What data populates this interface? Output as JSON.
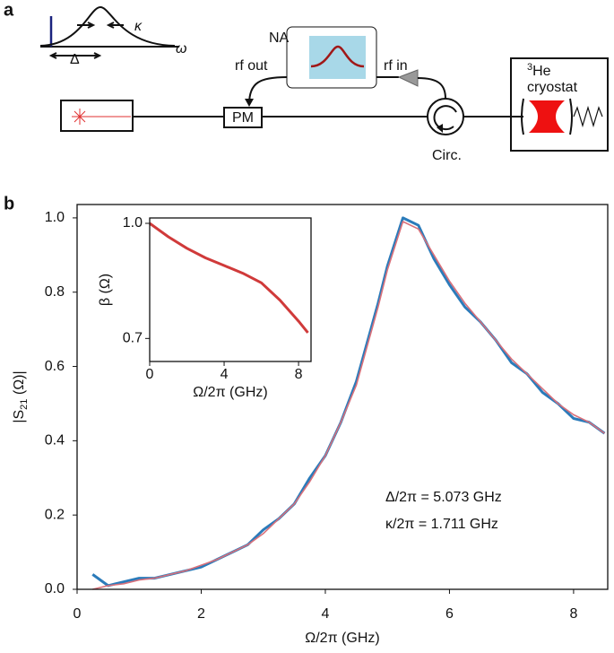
{
  "diagram": {
    "panel": "a",
    "na": "NA",
    "rf_out": "rf out",
    "rf_in": "rf in",
    "pm": "PM",
    "circ": "Circ.",
    "cryostat": [
      "3",
      "He",
      "cryostat"
    ],
    "kappa": "κ",
    "delta": "Δ",
    "omega": "ω"
  },
  "chart_data": [
    {
      "type": "line",
      "panel": "b",
      "xlabel": "Ω/2π (GHz)",
      "ylabel": [
        "|S",
        "21",
        " (Ω)|"
      ],
      "xlim": [
        0,
        8.55
      ],
      "xticks": [
        0,
        2,
        4,
        6,
        8
      ],
      "ylim": [
        0,
        1.036
      ],
      "yticks": [
        {
          "value": 0,
          "label": "0.0"
        },
        {
          "value": 0.2,
          "label": "0.2"
        },
        {
          "value": 0.4,
          "label": "0.4"
        },
        {
          "value": 0.6,
          "label": "0.6"
        },
        {
          "value": 0.8,
          "label": "0.8"
        },
        {
          "value": 1,
          "label": "1.0"
        }
      ],
      "x": [
        0.25,
        0.5,
        0.75,
        1,
        1.25,
        1.5,
        1.75,
        2,
        2.25,
        2.5,
        2.75,
        3,
        3.25,
        3.5,
        3.75,
        4,
        4.25,
        4.5,
        4.75,
        4.85,
        5,
        5.25,
        5.5,
        5.75,
        6,
        6.25,
        6.5,
        6.75,
        7,
        7.25,
        7.5,
        7.75,
        8,
        8.25,
        8.5
      ],
      "series": [
        {
          "color": "#2b7bba",
          "width": 3,
          "values": [
            0.04,
            0.01,
            0.02,
            0.03,
            0.03,
            0.04,
            0.05,
            0.06,
            0.08,
            0.1,
            0.12,
            0.16,
            0.19,
            0.23,
            0.3,
            0.36,
            0.45,
            0.56,
            0.71,
            0.77,
            0.87,
            1.0,
            0.98,
            0.89,
            0.82,
            0.76,
            0.72,
            0.67,
            0.61,
            0.58,
            0.53,
            0.5,
            0.46,
            0.45,
            0.42
          ]
        },
        {
          "color": "#d9707a",
          "width": 1.6,
          "values": [
            0.0,
            0.01,
            0.015,
            0.025,
            0.03,
            0.04,
            0.05,
            0.065,
            0.08,
            0.1,
            0.12,
            0.15,
            0.19,
            0.23,
            0.29,
            0.36,
            0.45,
            0.55,
            0.7,
            0.76,
            0.86,
            0.99,
            0.97,
            0.9,
            0.83,
            0.77,
            0.72,
            0.67,
            0.62,
            0.58,
            0.54,
            0.5,
            0.47,
            0.45,
            0.42
          ]
        }
      ],
      "annotations": [
        "Δ/2π = 5.073 GHz",
        "κ/2π = 1.711 GHz"
      ]
    },
    {
      "type": "line",
      "xlabel": "Ω/2π (GHz)",
      "ylabel": [
        "β (Ω)"
      ],
      "xlim": [
        0,
        8.67
      ],
      "xticks": [
        0,
        4,
        8
      ],
      "ylim": [
        0.64,
        1.014
      ],
      "yticks": [
        {
          "value": 0.7,
          "label": "0.7"
        },
        {
          "value": 1,
          "label": "1.0"
        }
      ],
      "x": [
        0,
        1,
        2,
        3,
        4,
        5,
        6,
        7,
        8,
        8.5
      ],
      "series": [
        {
          "color": "#d03a3a",
          "width": 3,
          "values": [
            1.0,
            0.965,
            0.935,
            0.91,
            0.89,
            0.87,
            0.845,
            0.8,
            0.745,
            0.715
          ]
        }
      ]
    }
  ]
}
